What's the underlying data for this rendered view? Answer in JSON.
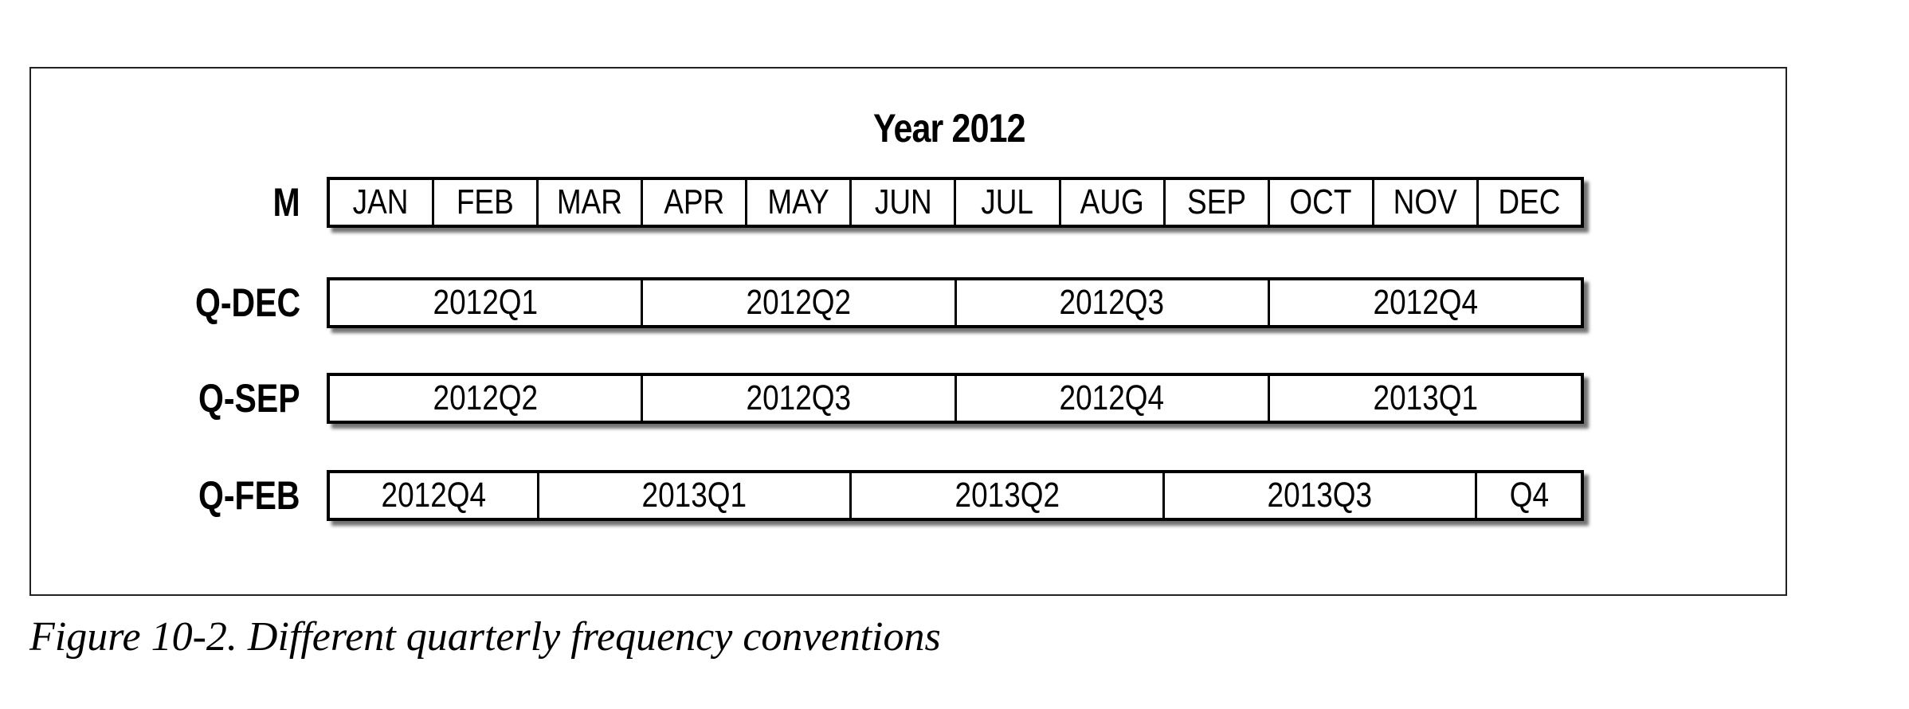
{
  "title": "Year 2012",
  "caption": "Figure 10-2. Different quarterly frequency conventions",
  "rows": [
    {
      "label": "M",
      "cells": [
        {
          "text": "JAN",
          "months": 1
        },
        {
          "text": "FEB",
          "months": 1
        },
        {
          "text": "MAR",
          "months": 1
        },
        {
          "text": "APR",
          "months": 1
        },
        {
          "text": "MAY",
          "months": 1
        },
        {
          "text": "JUN",
          "months": 1
        },
        {
          "text": "JUL",
          "months": 1
        },
        {
          "text": "AUG",
          "months": 1
        },
        {
          "text": "SEP",
          "months": 1
        },
        {
          "text": "OCT",
          "months": 1
        },
        {
          "text": "NOV",
          "months": 1
        },
        {
          "text": "DEC",
          "months": 1
        }
      ]
    },
    {
      "label": "Q-DEC",
      "cells": [
        {
          "text": "2012Q1",
          "months": 3
        },
        {
          "text": "2012Q2",
          "months": 3
        },
        {
          "text": "2012Q3",
          "months": 3
        },
        {
          "text": "2012Q4",
          "months": 3
        }
      ]
    },
    {
      "label": "Q-SEP",
      "cells": [
        {
          "text": "2012Q2",
          "months": 3
        },
        {
          "text": "2012Q3",
          "months": 3
        },
        {
          "text": "2012Q4",
          "months": 3
        },
        {
          "text": "2013Q1",
          "months": 3
        }
      ]
    },
    {
      "label": "Q-FEB",
      "cells": [
        {
          "text": "2012Q4",
          "months": 2
        },
        {
          "text": "2013Q1",
          "months": 3
        },
        {
          "text": "2013Q2",
          "months": 3
        },
        {
          "text": "2013Q3",
          "months": 3
        },
        {
          "text": "Q4",
          "months": 1
        }
      ]
    }
  ]
}
